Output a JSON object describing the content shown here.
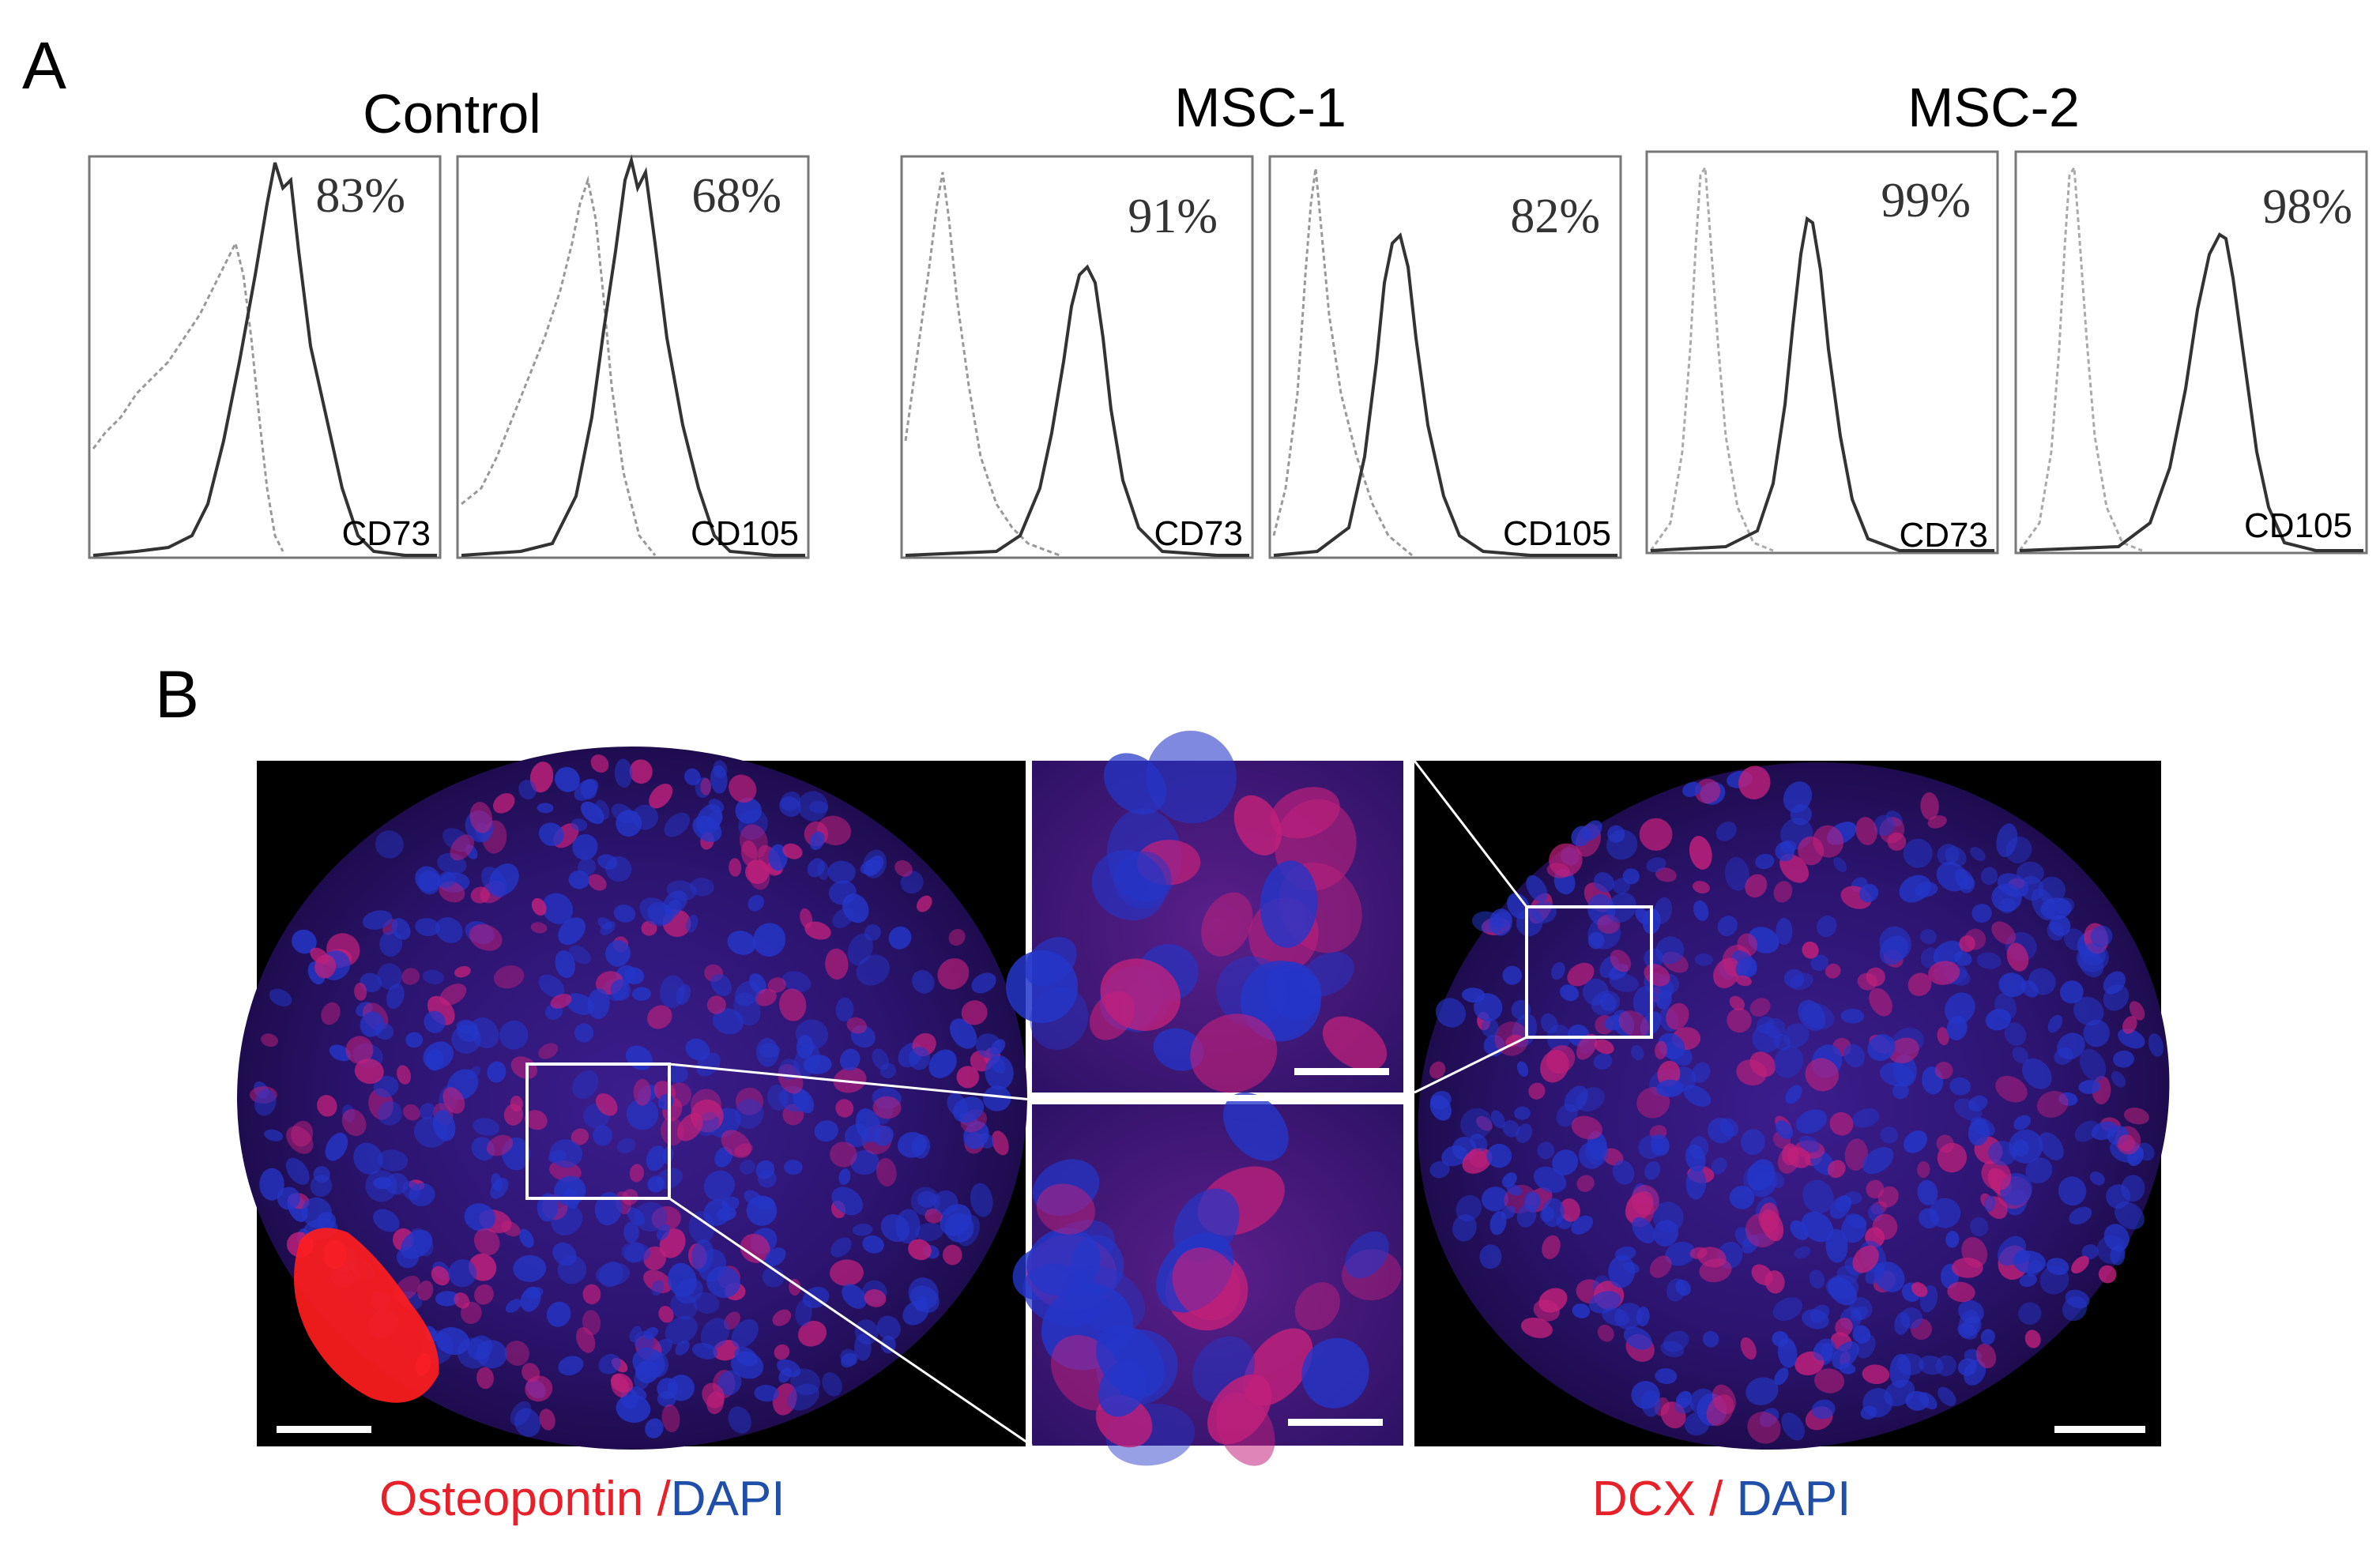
{
  "panelA": {
    "letter": "A",
    "groups": [
      {
        "title": "Control",
        "plots": [
          {
            "marker": "CD73",
            "percent": "83%"
          },
          {
            "marker": "CD105",
            "percent": "68%"
          }
        ]
      },
      {
        "title": "MSC-1",
        "plots": [
          {
            "marker": "CD73",
            "percent": "91%"
          },
          {
            "marker": "CD105",
            "percent": "82%"
          }
        ]
      },
      {
        "title": "MSC-2",
        "plots": [
          {
            "marker": "CD73",
            "percent": "99%"
          },
          {
            "marker": "CD105",
            "percent": "98%"
          }
        ]
      }
    ]
  },
  "panelB": {
    "letter": "B",
    "left_caption": {
      "red": "Osteopontin /",
      "blue": "DAPI"
    },
    "right_caption": {
      "red": "DCX /",
      "blue": " DAPI"
    },
    "colors": {
      "red": "#e8202a",
      "blue": "#1f4fa8",
      "background": "#000000"
    }
  }
}
